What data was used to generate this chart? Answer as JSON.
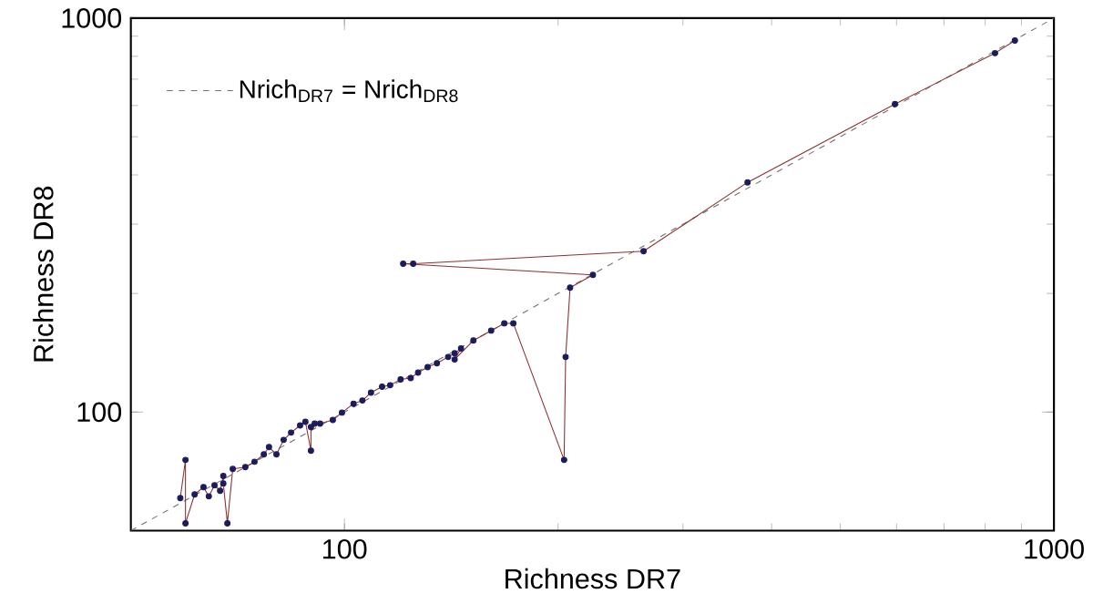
{
  "chart_data": {
    "type": "line",
    "xlabel": "Richness DR7",
    "ylabel": "Richness DR8",
    "log": "xy",
    "xlim": [
      50,
      1000
    ],
    "ylim": [
      50,
      1000
    ],
    "xticks": [
      100,
      1000
    ],
    "yticks": [
      100,
      1000
    ],
    "grid": false,
    "legend": "top left",
    "series": [
      {
        "line_style": "dashed",
        "marker": "none",
        "color": "#707070",
        "name": "Nrich$_{DR7}$ = Nrich$_{DR8}$",
        "x": [
          50,
          1000
        ],
        "values": [
          50,
          1000
        ]
      },
      {
        "line_style": "solid",
        "marker": "none",
        "color": "#8b3030",
        "x": [
          58.7,
          59.7,
          59.7,
          61.5,
          63.3,
          64.4,
          65.6,
          66.8,
          67.5,
          67.5,
          68.4,
          69.6,
          72.5,
          74.7,
          77.0,
          78.3,
          80.2,
          82.1,
          84.1,
          86.6,
          88.1,
          89.7,
          89.7,
          90.8,
          92.4,
          96.3,
          99.2,
          103,
          106,
          109,
          113,
          116,
          120,
          124,
          127,
          131,
          135,
          140,
          143,
          146,
          143,
          152,
          161,
          168,
          173,
          204,
          205,
          208,
          224,
          121,
          125,
          264,
          370,
          597,
          826,
          881
        ],
        "values": [
          60.5,
          75.6,
          52.2,
          61.8,
          64.5,
          61.1,
          65.2,
          63.1,
          68.8,
          65.9,
          52.2,
          71.7,
          72.5,
          74.8,
          78.1,
          81.5,
          78.1,
          85,
          88.7,
          92.5,
          94.5,
          79.8,
          91.6,
          93.5,
          93.5,
          95.5,
          99.7,
          105,
          107,
          112,
          116,
          117,
          121,
          122,
          126,
          130,
          133,
          138,
          141,
          145,
          136,
          152,
          161,
          168,
          168,
          75.6,
          138,
          207,
          223,
          238,
          238,
          256,
          383,
          605,
          815,
          877
        ]
      },
      {
        "type": "scatter",
        "marker": "circle",
        "color": "#1c1c5c",
        "x": [
          58.7,
          59.7,
          59.7,
          61.5,
          63.3,
          64.4,
          65.6,
          66.8,
          67.5,
          67.5,
          68.4,
          69.6,
          72.5,
          74.7,
          77.0,
          78.3,
          80.2,
          82.1,
          84.1,
          86.6,
          88.1,
          89.7,
          89.7,
          90.8,
          92.4,
          96.3,
          99.2,
          103,
          106,
          109,
          113,
          116,
          120,
          124,
          127,
          131,
          135,
          140,
          143,
          146,
          143,
          152,
          161,
          168,
          173,
          204,
          205,
          208,
          224,
          121,
          125,
          264,
          370,
          597,
          826,
          881
        ],
        "values": [
          60.5,
          75.6,
          52.2,
          61.8,
          64.5,
          61.1,
          65.2,
          63.1,
          68.8,
          65.9,
          52.2,
          71.7,
          72.5,
          74.8,
          78.1,
          81.5,
          78.1,
          85,
          88.7,
          92.5,
          94.5,
          79.8,
          91.6,
          93.5,
          93.5,
          95.5,
          99.7,
          105,
          107,
          112,
          116,
          117,
          121,
          122,
          126,
          130,
          133,
          138,
          141,
          145,
          136,
          152,
          161,
          168,
          168,
          75.6,
          138,
          207,
          223,
          238,
          238,
          256,
          383,
          605,
          815,
          877
        ]
      }
    ]
  }
}
